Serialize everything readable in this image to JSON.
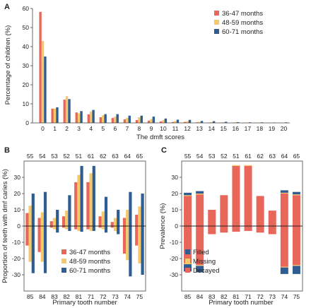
{
  "colors": {
    "c36": "#e8675a",
    "c48": "#f5c869",
    "c60": "#2f5d92",
    "filled": "#2f5d92",
    "missing": "#f5c869",
    "decayed": "#e8675a"
  },
  "chart_data": [
    {
      "panel": "A",
      "type": "bar",
      "xlabel": "The dmft scores",
      "ylabel": "Percentage of children (%)",
      "ylim": [
        0,
        60
      ],
      "yticks": [
        0,
        10,
        20,
        30,
        40,
        50,
        60
      ],
      "categories": [
        "0",
        "1",
        "2",
        "3",
        "4",
        "5",
        "6",
        "7",
        "8",
        "9",
        "10",
        "11",
        "12",
        "13",
        "14",
        "15",
        "16",
        "17",
        "18",
        "19",
        "20"
      ],
      "legend_position": "top-right",
      "series": [
        {
          "name": "36-47 months",
          "color_key": "c36",
          "values": [
            58.2,
            7.5,
            12.2,
            5.5,
            4.5,
            3.0,
            2.6,
            1.9,
            1.5,
            1.2,
            0.8,
            0.5,
            0.5,
            0.3,
            0.2,
            0.2,
            0.1,
            0.1,
            0.1,
            0.1,
            0.1
          ]
        },
        {
          "name": "48-59 months",
          "color_key": "c48",
          "values": [
            43.0,
            7.5,
            14.0,
            5.0,
            6.0,
            4.0,
            3.3,
            2.6,
            3.0,
            2.0,
            1.5,
            1.0,
            0.9,
            0.6,
            0.4,
            0.4,
            0.3,
            0.2,
            0.2,
            0.1,
            0.1
          ]
        },
        {
          "name": "60-71 months",
          "color_key": "c60",
          "values": [
            34.8,
            8.2,
            12.5,
            6.2,
            6.8,
            4.6,
            4.6,
            3.8,
            3.8,
            3.3,
            2.3,
            1.7,
            1.6,
            1.0,
            0.9,
            0.6,
            0.4,
            0.3,
            0.3,
            0.2,
            0.3
          ]
        }
      ]
    },
    {
      "panel": "B",
      "type": "bar",
      "xlabel": "Primary tooth number",
      "ylabel": "Proportion of teeth with dmf caries  (%)",
      "ylim": [
        -40,
        40
      ],
      "yticks": [
        -30,
        -20,
        -10,
        0,
        10,
        20,
        30
      ],
      "top_categories": [
        "55",
        "54",
        "53",
        "52",
        "51",
        "61",
        "62",
        "63",
        "64",
        "65"
      ],
      "bottom_categories": [
        "85",
        "84",
        "83",
        "82",
        "81",
        "71",
        "72",
        "73",
        "74",
        "75"
      ],
      "legend_position": "bottom-right",
      "series": [
        {
          "name": "36-47 months",
          "color_key": "c36",
          "upper": [
            8.0,
            5.0,
            3.0,
            6.0,
            27.0,
            27.0,
            6.0,
            2.5,
            5.0,
            7.0
          ],
          "lower": [
            -12.0,
            -16.0,
            -1.0,
            -1.0,
            -2.0,
            -2.0,
            -1.0,
            -1.0,
            -17.0,
            -12.0
          ]
        },
        {
          "name": "48-59 months",
          "color_key": "c48",
          "upper": [
            12.5,
            8.5,
            5.0,
            9.5,
            31.5,
            32.5,
            9.0,
            5.0,
            10.0,
            12.0
          ],
          "lower": [
            -22.0,
            -22.0,
            -2.0,
            -2.0,
            -3.0,
            -3.0,
            -2.0,
            -3.0,
            -21.0,
            -23.0
          ]
        },
        {
          "name": "60-71 months",
          "color_key": "c60",
          "upper": [
            20.0,
            21.0,
            10.0,
            19.0,
            37.0,
            37.0,
            18.0,
            10.0,
            21.0,
            20.0
          ],
          "lower": [
            -29.0,
            -29.0,
            -4.0,
            -3.0,
            -3.5,
            -3.0,
            -4.0,
            -5.0,
            -31.0,
            -30.0
          ]
        }
      ]
    },
    {
      "panel": "C",
      "type": "bar",
      "stacked": true,
      "xlabel": "Primary tooth number",
      "ylabel": "Prevalence  (%)",
      "ylim": [
        -40,
        40
      ],
      "yticks": [
        -30,
        -20,
        -10,
        0,
        10,
        20,
        30
      ],
      "top_categories": [
        "55",
        "54",
        "53",
        "52",
        "51",
        "61",
        "62",
        "63",
        "64",
        "65"
      ],
      "bottom_categories": [
        "85",
        "84",
        "83",
        "82",
        "81",
        "71",
        "72",
        "73",
        "74",
        "75"
      ],
      "legend_position": "bottom-left",
      "series": [
        {
          "name": "Filled",
          "color_key": "filled",
          "upper": [
            1.5,
            1.5,
            0,
            0,
            0,
            0,
            0,
            0,
            1.5,
            1.5
          ],
          "lower": [
            -4.5,
            -4.0,
            0,
            0,
            0,
            0,
            0,
            0,
            -4.0,
            -5.0
          ]
        },
        {
          "name": "Missing",
          "color_key": "missing",
          "upper": [
            0.5,
            0.5,
            0,
            0,
            0.5,
            0.5,
            0,
            0,
            0.5,
            0.5
          ],
          "lower": [
            -0.5,
            -0.5,
            0,
            0,
            0,
            0,
            0,
            0,
            -0.5,
            -0.5
          ]
        },
        {
          "name": "Decayed",
          "color_key": "decayed",
          "upper": [
            18.5,
            19.5,
            10.0,
            19.0,
            37.0,
            37.0,
            18.5,
            9.5,
            20.0,
            19.0
          ],
          "lower": [
            -23.0,
            -24.0,
            -5.0,
            -4.0,
            -3.5,
            -3.0,
            -4.0,
            -5.0,
            -25.0,
            -24.0
          ]
        }
      ]
    }
  ]
}
